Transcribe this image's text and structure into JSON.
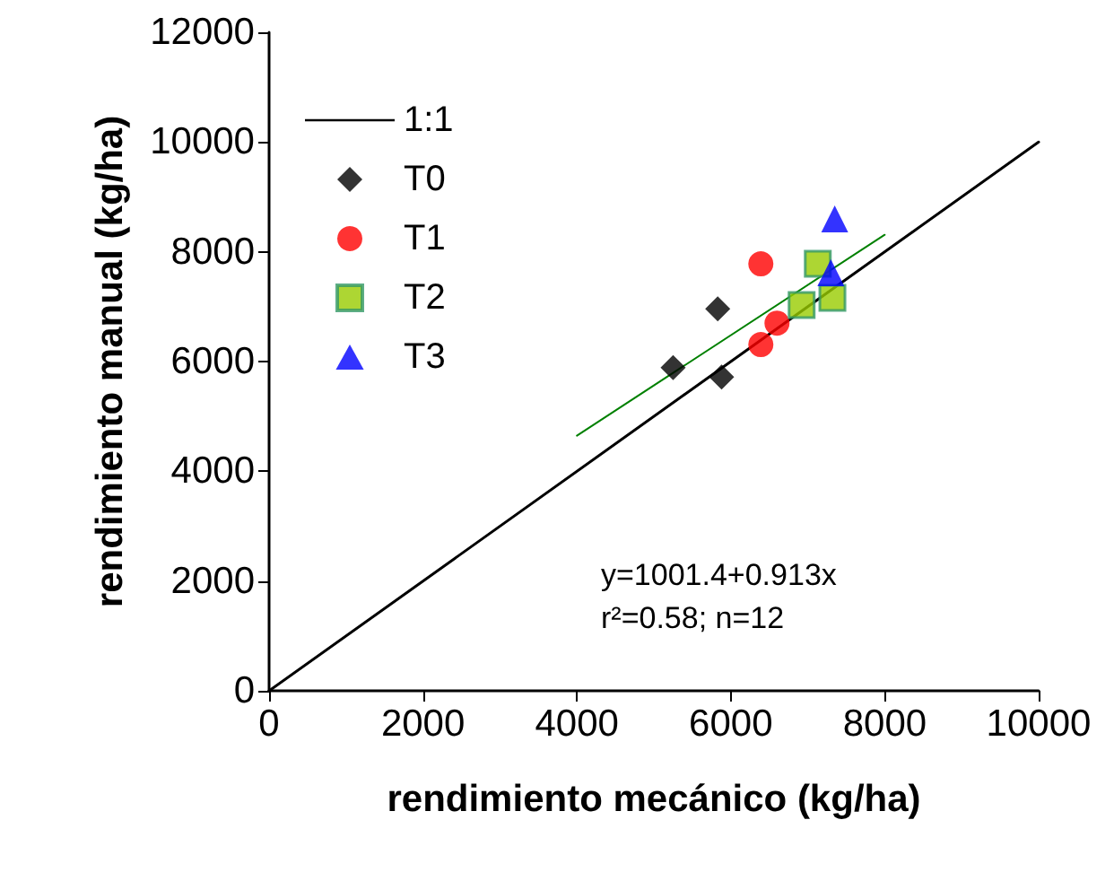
{
  "chart_data": {
    "type": "scatter",
    "xlabel": "rendimiento mecánico (kg/ha)",
    "ylabel": "rendimiento manual (kg/ha)",
    "xlim": [
      0,
      10000
    ],
    "xticks": [
      0,
      2000,
      4000,
      6000,
      8000,
      10000
    ],
    "ylim": [
      0,
      12000
    ],
    "yticks": [
      0,
      2000,
      4000,
      6000,
      8000,
      10000,
      12000
    ],
    "grid": false,
    "legend": "top left",
    "series": [
      {
        "name": "1:1",
        "type": "line",
        "color": "#000000",
        "marker": "none",
        "x": [
          0,
          10000
        ],
        "values": [
          0,
          10000
        ]
      },
      {
        "name": "T0",
        "color": "#000000",
        "marker": "diamond",
        "x": [
          5830,
          5250,
          5880
        ],
        "values": [
          6960,
          5890,
          5720
        ]
      },
      {
        "name": "T1",
        "color": "#ff0000",
        "marker": "circle",
        "x": [
          6390,
          6600,
          6390
        ],
        "values": [
          7780,
          6700,
          6310
        ]
      },
      {
        "name": "T2",
        "color": "#99cc00",
        "marker": "square",
        "x": [
          7130,
          6920,
          7320
        ],
        "values": [
          7780,
          7030,
          7160
        ]
      },
      {
        "name": "T3",
        "color": "#0000ff",
        "marker": "triangle",
        "x": [
          7350,
          7300
        ],
        "values": [
          8600,
          7620
        ]
      },
      {
        "type": "line",
        "color": "#008000",
        "marker": "none",
        "x": [
          4000,
          8000
        ],
        "values": [
          4650,
          8310
        ]
      }
    ],
    "annotations": [
      "y=1001.4+0.913x",
      "r²=0.58; n=12"
    ]
  }
}
